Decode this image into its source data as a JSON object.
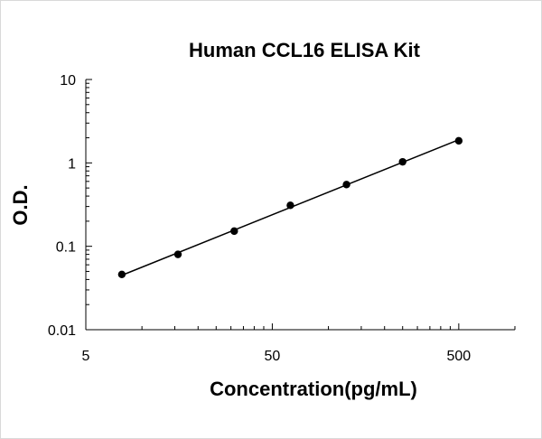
{
  "chart_data": {
    "type": "scatter",
    "title": "Human CCL16 ELISA Kit",
    "xlabel": "Concentration(pg/mL)",
    "ylabel": "O.D.",
    "x_scale": "log",
    "y_scale": "log",
    "xlim": [
      5,
      1000
    ],
    "ylim": [
      0.01,
      10
    ],
    "x_tick_labels": [
      "5",
      "50",
      "500"
    ],
    "y_tick_labels": [
      "0.01",
      "0.1",
      "1",
      "10"
    ],
    "grid": false,
    "legend": "none",
    "series": [
      {
        "x": [
          7.8,
          15.6,
          31.25,
          62.5,
          125,
          250,
          500
        ],
        "y": [
          0.046,
          0.08,
          0.152,
          0.31,
          0.55,
          1.03,
          1.84
        ],
        "marker_color": "#000000",
        "trendline": true
      }
    ]
  }
}
